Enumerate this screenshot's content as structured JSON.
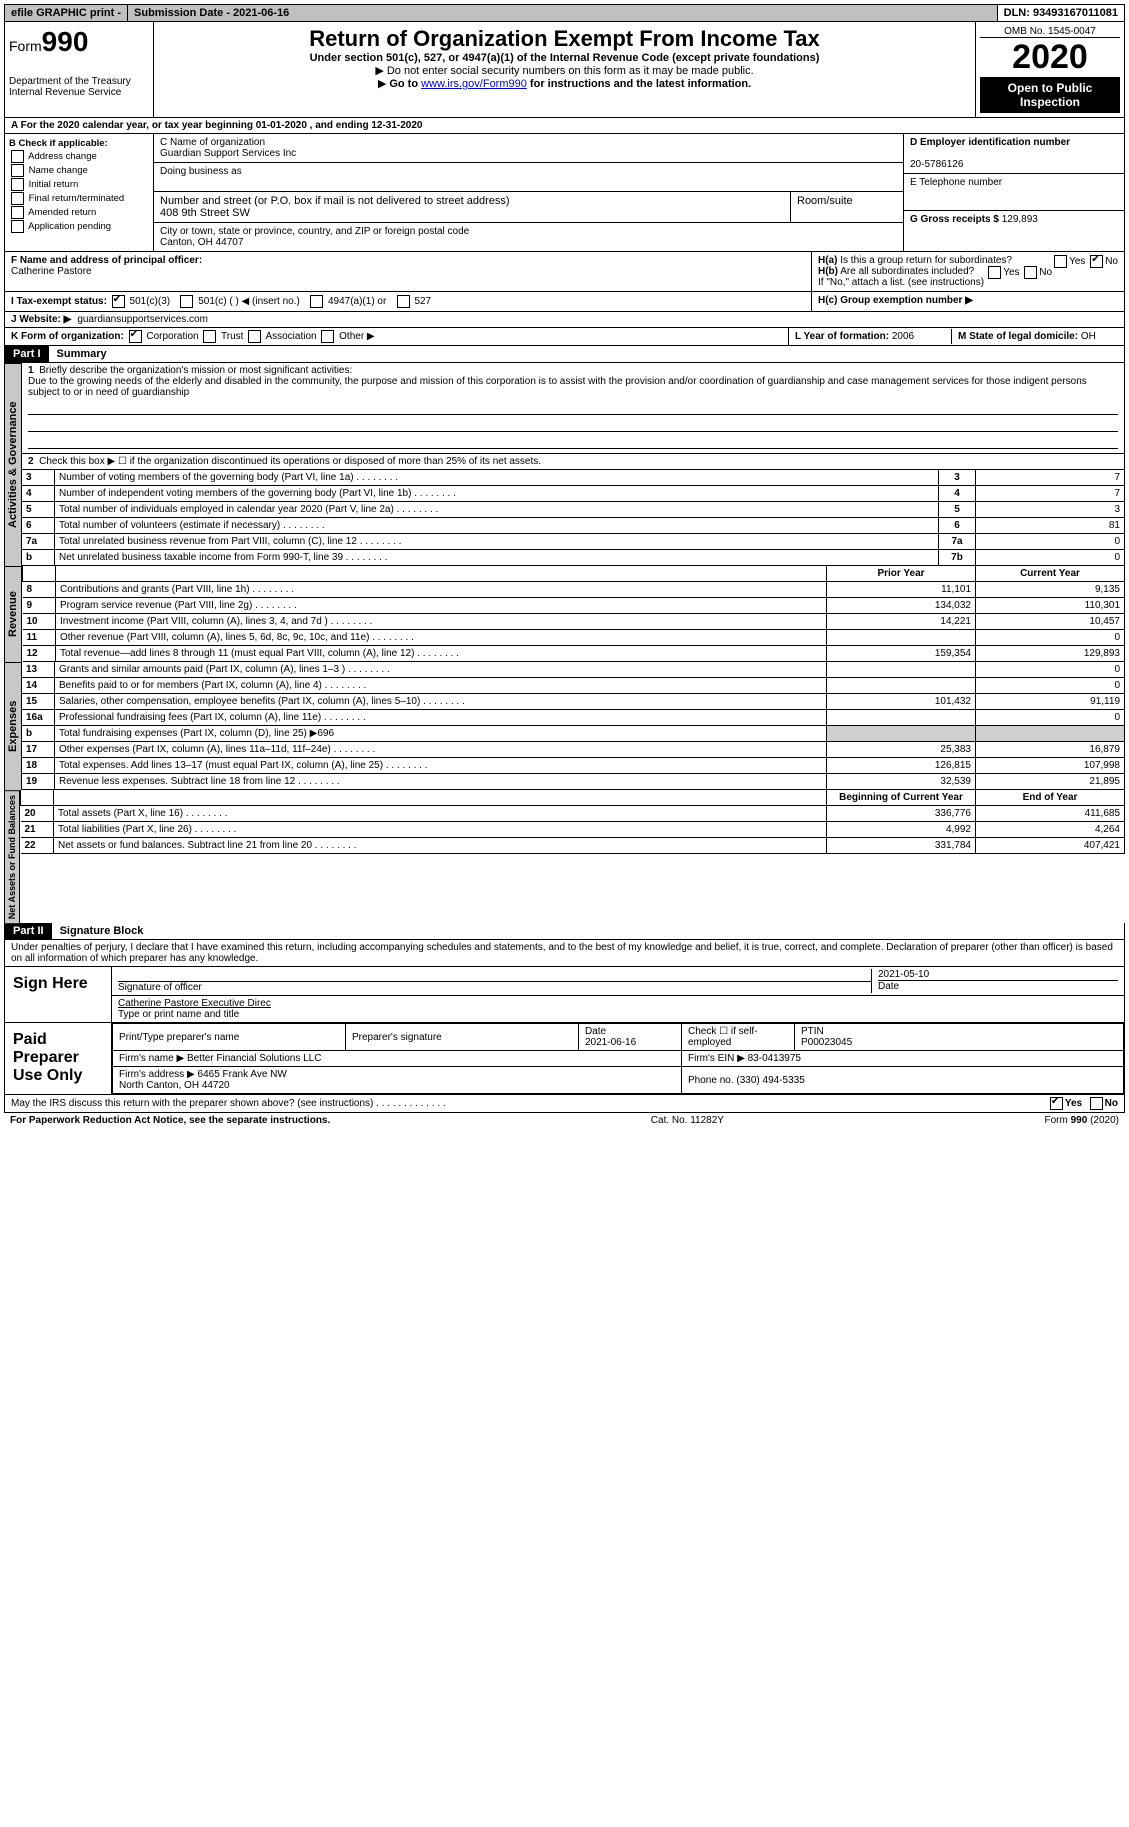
{
  "topbar": {
    "efile": "efile GRAPHIC print -",
    "submission": "Submission Date - 2021-06-16",
    "dln": "DLN: 93493167011081"
  },
  "header": {
    "form_label": "Form",
    "form_no": "990",
    "dept": "Department of the Treasury\nInternal Revenue Service",
    "title": "Return of Organization Exempt From Income Tax",
    "sub": "Under section 501(c), 527, or 4947(a)(1) of the Internal Revenue Code (except private foundations)",
    "note1": "Do not enter social security numbers on this form as it may be made public.",
    "note2_a": "Go to ",
    "note2_link": "www.irs.gov/Form990",
    "note2_b": " for instructions and the latest information.",
    "omb": "OMB No. 1545-0047",
    "year": "2020",
    "inspect": "Open to Public Inspection"
  },
  "rowA": "For the 2020 calendar year, or tax year beginning 01-01-2020    , and ending 12-31-2020",
  "B": {
    "hdr": "B Check if applicable:",
    "items": [
      "Address change",
      "Name change",
      "Initial return",
      "Final return/terminated",
      "Amended return",
      "Application pending"
    ]
  },
  "C": {
    "name_lbl": "C Name of organization",
    "name": "Guardian Support Services Inc",
    "dba": "Doing business as",
    "street_lbl": "Number and street (or P.O. box if mail is not delivered to street address)",
    "room_lbl": "Room/suite",
    "street": "408 9th Street SW",
    "city_lbl": "City or town, state or province, country, and ZIP or foreign postal code",
    "city": "Canton, OH  44707"
  },
  "D": {
    "lbl": "D Employer identification number",
    "val": "20-5786126"
  },
  "E": {
    "lbl": "E Telephone number",
    "val": ""
  },
  "G": {
    "lbl": "G Gross receipts $",
    "val": "129,893"
  },
  "F": {
    "lbl": "F  Name and address of principal officer:",
    "val": "Catherine Pastore"
  },
  "H": {
    "a": "H(a)  Is this a group return for subordinates?",
    "b": "H(b)  Are all subordinates included?",
    "note": "If \"No,\" attach a list. (see instructions)",
    "c": "H(c)  Group exemption number ▶",
    "yes": "Yes",
    "no": "No"
  },
  "I": {
    "lbl": "I  Tax-exempt status:",
    "opts": [
      "501(c)(3)",
      "501(c) (   ) ◀ (insert no.)",
      "4947(a)(1) or",
      "527"
    ]
  },
  "J": {
    "lbl": "J  Website: ▶",
    "val": "guardiansupportservices.com"
  },
  "K": {
    "lbl": "K Form of organization:",
    "opts": [
      "Corporation",
      "Trust",
      "Association",
      "Other ▶"
    ]
  },
  "L": {
    "lbl": "L Year of formation:",
    "val": "2006"
  },
  "M": {
    "lbl": "M State of legal domicile:",
    "val": "OH"
  },
  "partI": {
    "hdr": "Part I",
    "title": "Summary",
    "tab_ag": "Activities & Governance",
    "tab_rev": "Revenue",
    "tab_exp": "Expenses",
    "tab_na": "Net Assets or Fund Balances",
    "line1_lbl": "Briefly describe the organization's mission or most significant activities:",
    "line1_txt": "Due to the growing needs of the elderly and disabled in the community, the purpose and mission of this corporation is to assist with the provision and/or coordination of guardianship and case management services for those indigent persons subject to or in need of guardianship",
    "line2": "Check this box ▶ ☐  if the organization discontinued its operations or disposed of more than 25% of its net assets.",
    "rows_ag": [
      {
        "n": "3",
        "d": "Number of voting members of the governing body (Part VI, line 1a)",
        "c": "3",
        "v": "7"
      },
      {
        "n": "4",
        "d": "Number of independent voting members of the governing body (Part VI, line 1b)",
        "c": "4",
        "v": "7"
      },
      {
        "n": "5",
        "d": "Total number of individuals employed in calendar year 2020 (Part V, line 2a)",
        "c": "5",
        "v": "3"
      },
      {
        "n": "6",
        "d": "Total number of volunteers (estimate if necessary)",
        "c": "6",
        "v": "81"
      },
      {
        "n": "7a",
        "d": "Total unrelated business revenue from Part VIII, column (C), line 12",
        "c": "7a",
        "v": "0"
      },
      {
        "n": "b",
        "d": "Net unrelated business taxable income from Form 990-T, line 39",
        "c": "7b",
        "v": "0"
      }
    ],
    "col_py": "Prior Year",
    "col_cy": "Current Year",
    "rows_rev": [
      {
        "n": "8",
        "d": "Contributions and grants (Part VIII, line 1h)",
        "p": "11,101",
        "c": "9,135"
      },
      {
        "n": "9",
        "d": "Program service revenue (Part VIII, line 2g)",
        "p": "134,032",
        "c": "110,301"
      },
      {
        "n": "10",
        "d": "Investment income (Part VIII, column (A), lines 3, 4, and 7d )",
        "p": "14,221",
        "c": "10,457"
      },
      {
        "n": "11",
        "d": "Other revenue (Part VIII, column (A), lines 5, 6d, 8c, 9c, 10c, and 11e)",
        "p": "",
        "c": "0"
      },
      {
        "n": "12",
        "d": "Total revenue—add lines 8 through 11 (must equal Part VIII, column (A), line 12)",
        "p": "159,354",
        "c": "129,893"
      }
    ],
    "rows_exp": [
      {
        "n": "13",
        "d": "Grants and similar amounts paid (Part IX, column (A), lines 1–3 )",
        "p": "",
        "c": "0"
      },
      {
        "n": "14",
        "d": "Benefits paid to or for members (Part IX, column (A), line 4)",
        "p": "",
        "c": "0"
      },
      {
        "n": "15",
        "d": "Salaries, other compensation, employee benefits (Part IX, column (A), lines 5–10)",
        "p": "101,432",
        "c": "91,119"
      },
      {
        "n": "16a",
        "d": "Professional fundraising fees (Part IX, column (A), line 11e)",
        "p": "",
        "c": "0"
      },
      {
        "n": "b",
        "d": "Total fundraising expenses (Part IX, column (D), line 25) ▶696",
        "p": "shade",
        "c": "shade"
      },
      {
        "n": "17",
        "d": "Other expenses (Part IX, column (A), lines 11a–11d, 11f–24e)",
        "p": "25,383",
        "c": "16,879"
      },
      {
        "n": "18",
        "d": "Total expenses. Add lines 13–17 (must equal Part IX, column (A), line 25)",
        "p": "126,815",
        "c": "107,998"
      },
      {
        "n": "19",
        "d": "Revenue less expenses. Subtract line 18 from line 12",
        "p": "32,539",
        "c": "21,895"
      }
    ],
    "col_by": "Beginning of Current Year",
    "col_ey": "End of Year",
    "rows_na": [
      {
        "n": "20",
        "d": "Total assets (Part X, line 16)",
        "p": "336,776",
        "c": "411,685"
      },
      {
        "n": "21",
        "d": "Total liabilities (Part X, line 26)",
        "p": "4,992",
        "c": "4,264"
      },
      {
        "n": "22",
        "d": "Net assets or fund balances. Subtract line 21 from line 20",
        "p": "331,784",
        "c": "407,421"
      }
    ]
  },
  "partII": {
    "hdr": "Part II",
    "title": "Signature Block",
    "decl": "Under penalties of perjury, I declare that I have examined this return, including accompanying schedules and statements, and to the best of my knowledge and belief, it is true, correct, and complete. Declaration of preparer (other than officer) is based on all information of which preparer has any knowledge.",
    "sign_here": "Sign Here",
    "sig_lbl": "Signature of officer",
    "date_lbl": "Date",
    "date": "2021-05-10",
    "name": "Catherine Pastore  Executive Direc",
    "name_lbl": "Type or print name and title",
    "paid": "Paid Preparer Use Only",
    "p_name_lbl": "Print/Type preparer's name",
    "p_sig_lbl": "Preparer's signature",
    "p_date_lbl": "Date",
    "p_date": "2021-06-16",
    "p_self": "Check ☐ if self-employed",
    "p_ptin_lbl": "PTIN",
    "p_ptin": "P00023045",
    "firm_name_lbl": "Firm's name    ▶",
    "firm_name": "Better Financial Solutions LLC",
    "firm_ein_lbl": "Firm's EIN ▶",
    "firm_ein": "83-0413975",
    "firm_addr_lbl": "Firm's address ▶",
    "firm_addr": "6465 Frank Ave NW\nNorth Canton, OH  44720",
    "phone_lbl": "Phone no.",
    "phone": "(330) 494-5335",
    "discuss": "May the IRS discuss this return with the preparer shown above? (see instructions)",
    "yes": "Yes",
    "no": "No"
  },
  "bottom": {
    "pra": "For Paperwork Reduction Act Notice, see the separate instructions.",
    "cat": "Cat. No. 11282Y",
    "form": "Form 990 (2020)"
  }
}
